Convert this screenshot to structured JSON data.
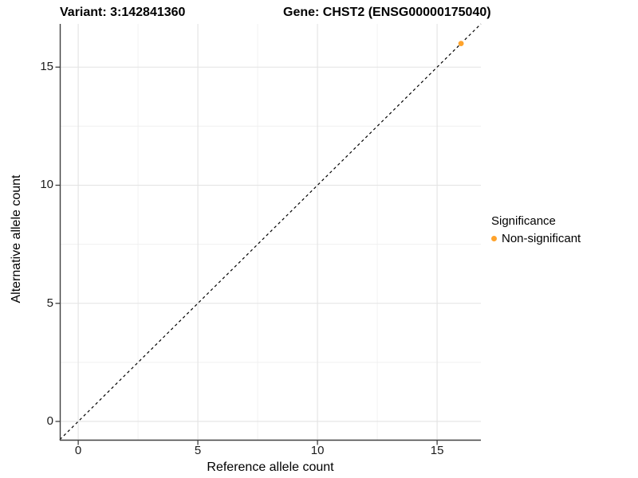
{
  "chart_data": {
    "type": "scatter",
    "title_left": "Variant: 3:142841360",
    "title_right": "Gene: CHST2 (ENSG00000175040)",
    "xlabel": "Reference allele count",
    "ylabel": "Alternative allele count",
    "xlim": [
      -0.77,
      16.83
    ],
    "ylim": [
      -0.81,
      16.83
    ],
    "x_ticks": [
      0,
      5,
      10,
      15
    ],
    "y_ticks": [
      0,
      5,
      10,
      15
    ],
    "x_minor_ticks": [
      2.5,
      7.5,
      12.5
    ],
    "y_minor_ticks": [
      2.5,
      7.5,
      12.5
    ],
    "grid": "major and minor gridlines, white background",
    "reference_line": {
      "type": "identity y=x",
      "style": "dashed",
      "color": "#000000"
    },
    "series": [
      {
        "name": "Non-significant",
        "color": "#FFA32B",
        "points": [
          {
            "x": 16,
            "y": 16
          }
        ]
      }
    ],
    "legend": {
      "title": "Significance",
      "position": "right",
      "items": [
        {
          "label": "Non-significant",
          "color": "#FFA32B"
        }
      ]
    }
  },
  "colors": {
    "axis_line": "#404040",
    "grid_major": "#e3e3e3",
    "grid_minor": "#f0f0f0",
    "tick_text": "#1c1c1c"
  }
}
